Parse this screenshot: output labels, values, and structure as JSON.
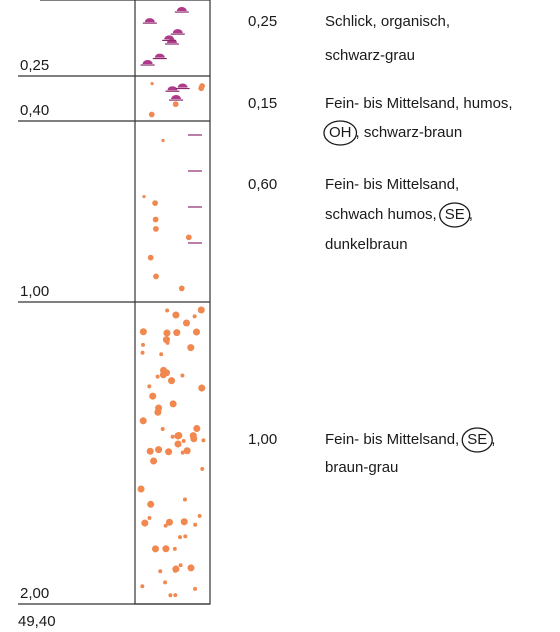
{
  "layers": [
    {
      "depth": "0,25",
      "thickness": "0,25",
      "lines": [
        [
          {
            "text": "Schlick, organisch,"
          }
        ],
        [
          {
            "text": "schwarz-grau"
          }
        ]
      ]
    },
    {
      "depth": "0,40",
      "thickness": "0,15",
      "lines": [
        [
          {
            "text": "Fein- bis Mittelsand, humos,"
          }
        ],
        [
          {
            "code": "OH"
          },
          {
            "text": ", schwarz-braun"
          }
        ]
      ]
    },
    {
      "depth": "1,00",
      "thickness": "0,60",
      "lines": [
        [
          {
            "text": "Fein- bis Mittelsand,"
          }
        ],
        [
          {
            "text": "schwach humos,"
          },
          {
            "code": "SE"
          },
          {
            "text": ","
          }
        ],
        [
          {
            "text": "dunkelbraun"
          }
        ]
      ]
    },
    {
      "depth": "2,00",
      "thickness": "1,00",
      "lines": [
        [
          {
            "text": "Fein- bis Mittelsand,"
          },
          {
            "code": "SE"
          },
          {
            "text": ","
          }
        ],
        [
          {
            "text": "braun-grau"
          }
        ]
      ]
    }
  ],
  "elevation": "49,40"
}
